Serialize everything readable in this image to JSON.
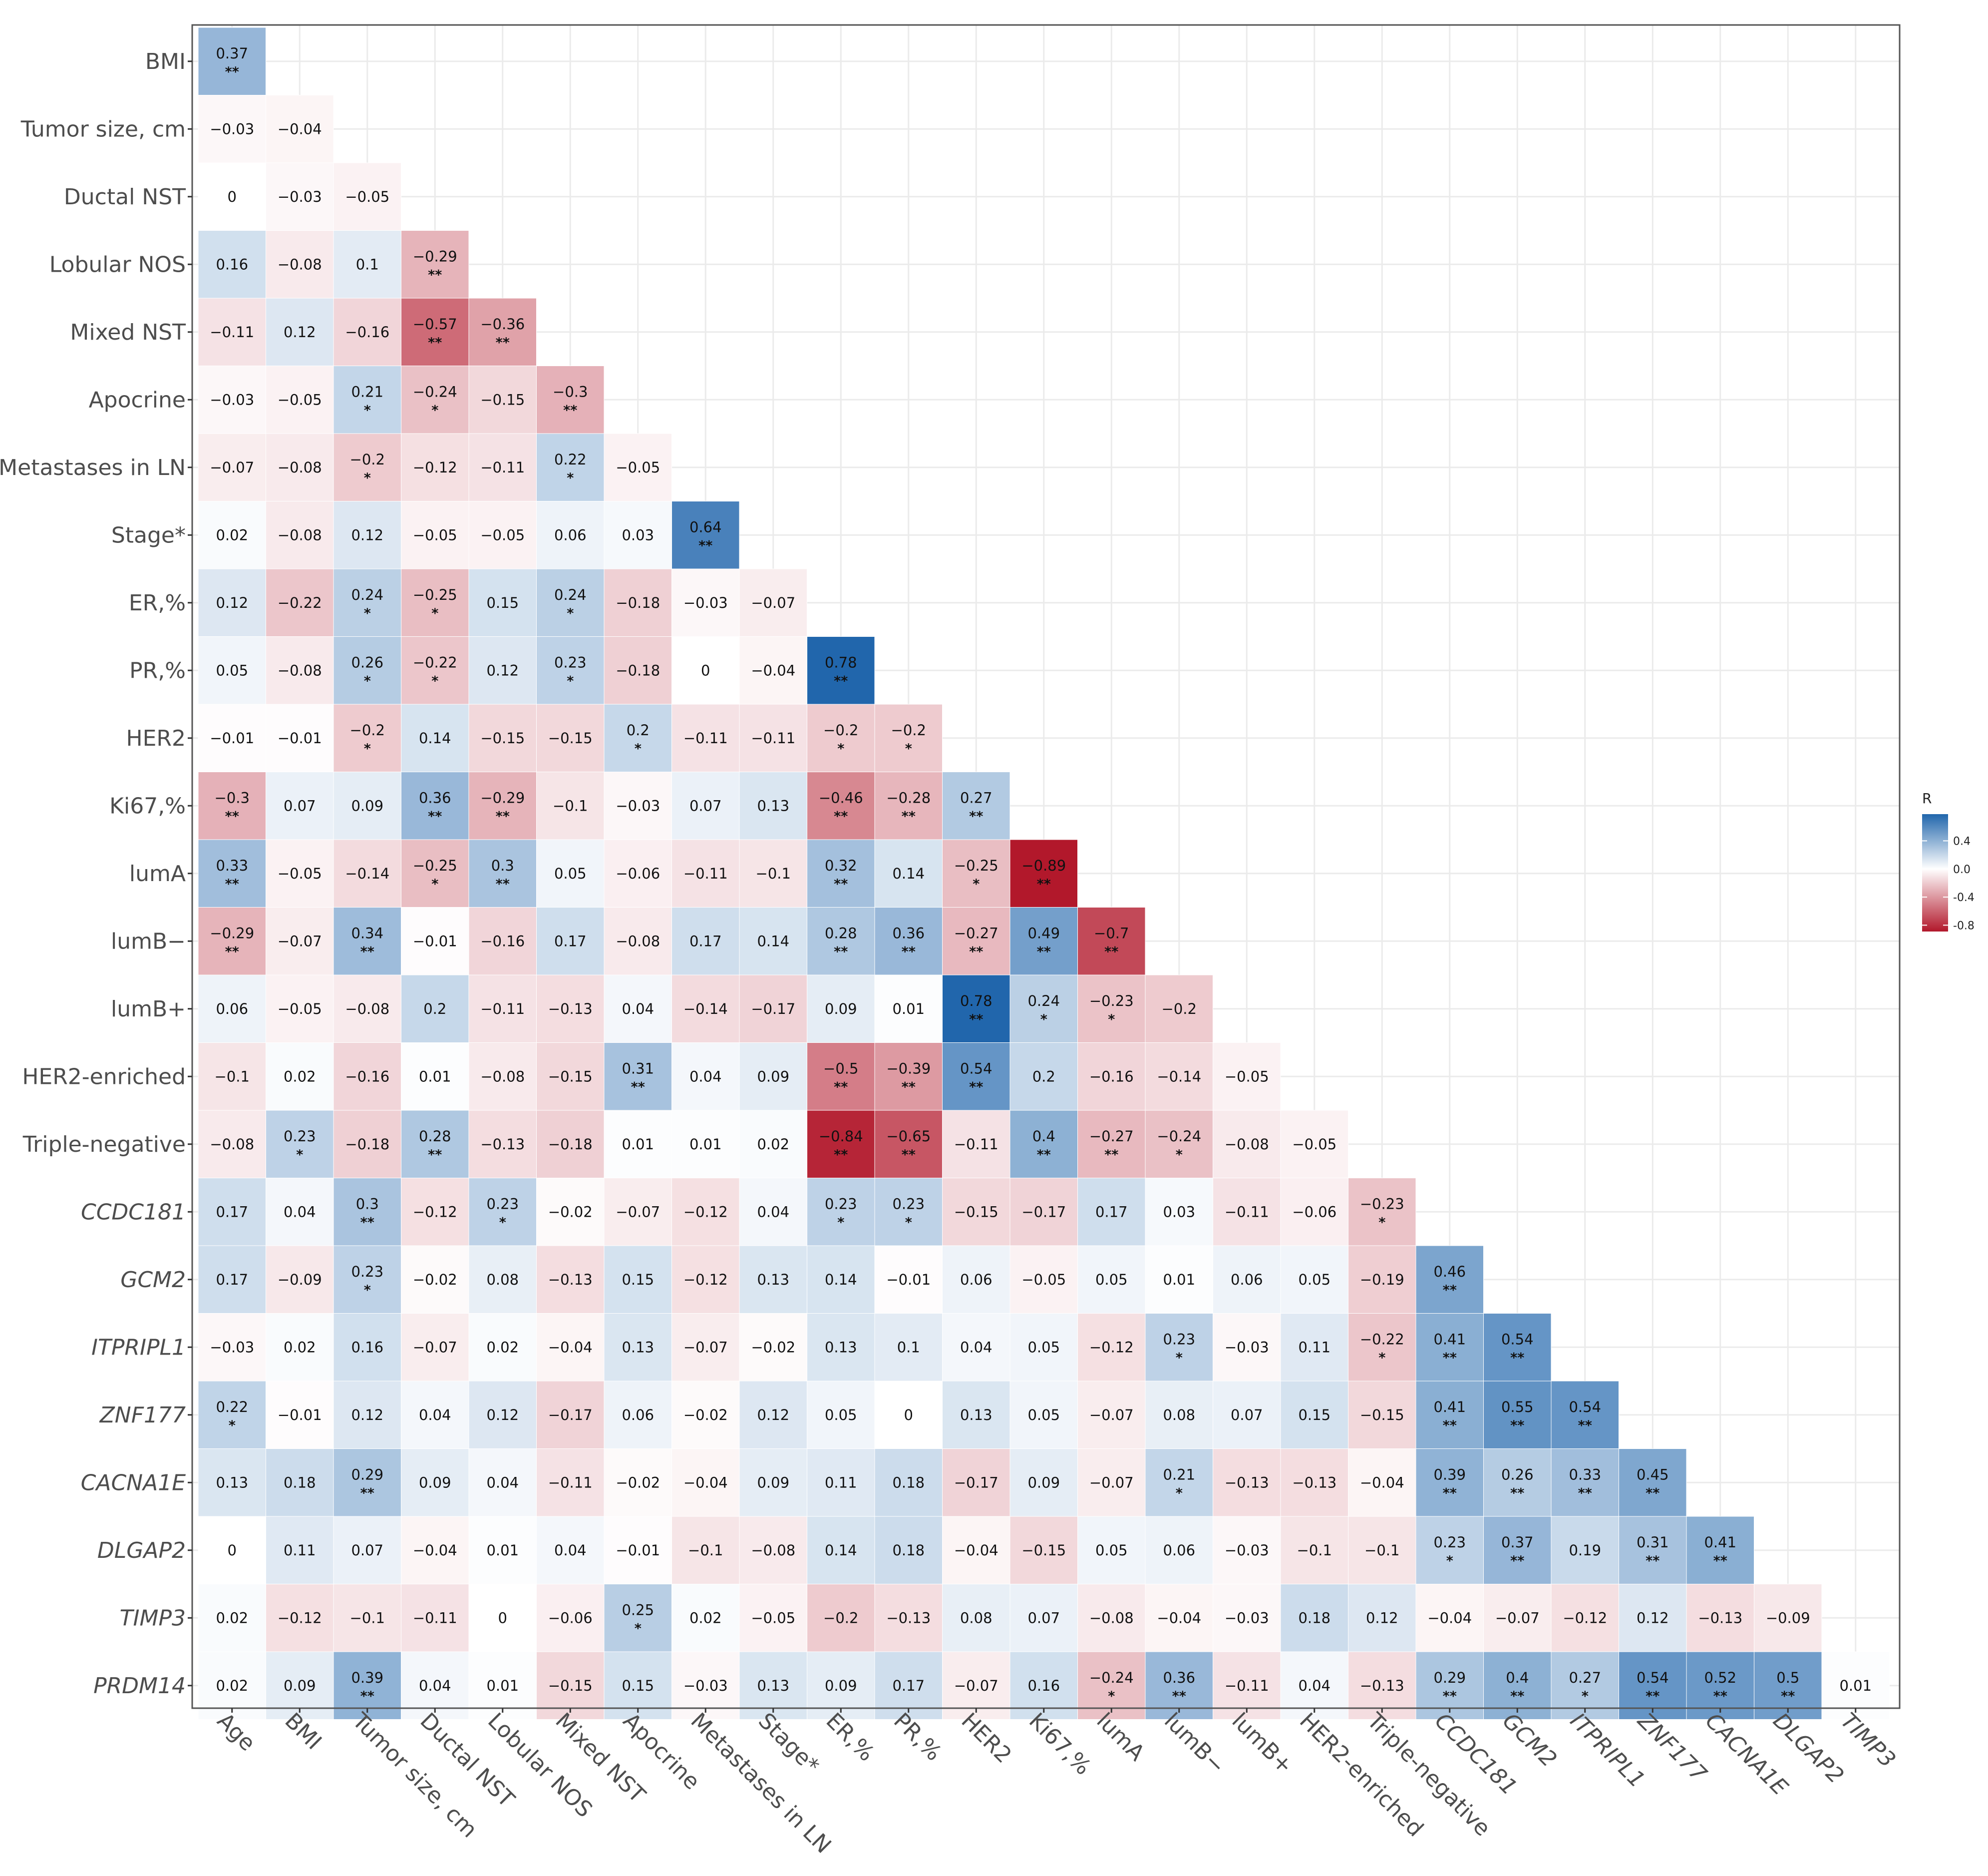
{
  "chart_data": {
    "type": "heatmap",
    "title": "",
    "xlabel": "",
    "ylabel": "",
    "italic_labels": [
      "CCDC181",
      "GCM2",
      "ITPRIPL1",
      "ZNF177",
      "CACNA1E",
      "DLGAP2",
      "TIMP3",
      "PRDM14"
    ],
    "columns": [
      "Age",
      "BMI",
      "Tumor size, cm",
      "Ductal NST",
      "Lobular NOS",
      "Mixed NST",
      "Apocrine",
      "Metastases in LN",
      "Stage*",
      "ER,%",
      "PR,%",
      "HER2",
      "Ki67,%",
      "lumA",
      "lumB−",
      "lumB+",
      "HER2-enriched",
      "Triple-negative",
      "CCDC181",
      "GCM2",
      "ITPRIPL1",
      "ZNF177",
      "CACNA1E",
      "DLGAP2",
      "TIMP3"
    ],
    "rows": [
      {
        "label": "BMI",
        "r": [
          "0.37"
        ],
        "sig": [
          "**"
        ]
      },
      {
        "label": "Tumor size, cm",
        "r": [
          "-0.03",
          "-0.04"
        ],
        "sig": [
          "",
          ""
        ]
      },
      {
        "label": "Ductal NST",
        "r": [
          "0",
          "-0.03",
          "-0.05"
        ],
        "sig": [
          "",
          "",
          ""
        ]
      },
      {
        "label": "Lobular NOS",
        "r": [
          "0.16",
          "-0.08",
          "0.1",
          "-0.29"
        ],
        "sig": [
          "",
          "",
          "",
          "**"
        ]
      },
      {
        "label": "Mixed NST",
        "r": [
          "-0.11",
          "0.12",
          "-0.16",
          "-0.57",
          "-0.36"
        ],
        "sig": [
          "",
          "",
          "",
          "**",
          "**"
        ]
      },
      {
        "label": "Apocrine",
        "r": [
          "-0.03",
          "-0.05",
          "0.21",
          "-0.24",
          "-0.15",
          "-0.3"
        ],
        "sig": [
          "",
          "",
          "*",
          "*",
          "",
          "**"
        ]
      },
      {
        "label": "Metastases in LN",
        "r": [
          "-0.07",
          "-0.08",
          "-0.2",
          "-0.12",
          "-0.11",
          "0.22",
          "-0.05"
        ],
        "sig": [
          "",
          "",
          "*",
          "",
          "",
          "*",
          ""
        ]
      },
      {
        "label": "Stage*",
        "r": [
          "0.02",
          "-0.08",
          "0.12",
          "-0.05",
          "-0.05",
          "0.06",
          "0.03",
          "0.64"
        ],
        "sig": [
          "",
          "",
          "",
          "",
          "",
          "",
          "",
          "**"
        ]
      },
      {
        "label": "ER,%",
        "r": [
          "0.12",
          "-0.22",
          "0.24",
          "-0.25",
          "0.15",
          "0.24",
          "-0.18",
          "-0.03",
          "-0.07"
        ],
        "sig": [
          "",
          "",
          "*",
          "*",
          "",
          "*",
          "",
          "",
          ""
        ]
      },
      {
        "label": "PR,%",
        "r": [
          "0.05",
          "-0.08",
          "0.26",
          "-0.22",
          "0.12",
          "0.23",
          "-0.18",
          "0",
          "-0.04",
          "0.78"
        ],
        "sig": [
          "",
          "",
          "*",
          "*",
          "",
          "*",
          "",
          "",
          "",
          "**"
        ]
      },
      {
        "label": "HER2",
        "r": [
          "-0.01",
          "-0.01",
          "-0.2",
          "0.14",
          "-0.15",
          "-0.15",
          "0.2",
          "-0.11",
          "-0.11",
          "-0.2",
          "-0.2"
        ],
        "sig": [
          "",
          "",
          "*",
          "",
          "",
          "",
          "*",
          "",
          "",
          "*",
          "*"
        ]
      },
      {
        "label": "Ki67,%",
        "r": [
          "-0.3",
          "0.07",
          "0.09",
          "0.36",
          "-0.29",
          "-0.1",
          "-0.03",
          "0.07",
          "0.13",
          "-0.46",
          "-0.28",
          "0.27"
        ],
        "sig": [
          "**",
          "",
          "",
          "**",
          "**",
          "",
          "",
          "",
          "",
          "**",
          "**",
          "**"
        ]
      },
      {
        "label": "lumA",
        "r": [
          "0.33",
          "-0.05",
          "-0.14",
          "-0.25",
          "0.3",
          "0.05",
          "-0.06",
          "-0.11",
          "-0.1",
          "0.32",
          "0.14",
          "-0.25",
          "-0.89"
        ],
        "sig": [
          "**",
          "",
          "",
          "*",
          "**",
          "",
          "",
          "",
          "",
          "**",
          "",
          "*",
          "**"
        ]
      },
      {
        "label": "lumB−",
        "r": [
          "-0.29",
          "-0.07",
          "0.34",
          "-0.01",
          "-0.16",
          "0.17",
          "-0.08",
          "0.17",
          "0.14",
          "0.28",
          "0.36",
          "-0.27",
          "0.49",
          "-0.7"
        ],
        "sig": [
          "**",
          "",
          "**",
          "",
          "",
          "",
          "",
          "",
          "",
          "**",
          "**",
          "**",
          "**",
          "**"
        ]
      },
      {
        "label": "lumB+",
        "r": [
          "0.06",
          "-0.05",
          "-0.08",
          "0.2",
          "-0.11",
          "-0.13",
          "0.04",
          "-0.14",
          "-0.17",
          "0.09",
          "0.01",
          "0.78",
          "0.24",
          "-0.23",
          "-0.2"
        ],
        "sig": [
          "",
          "",
          "",
          "",
          "",
          "",
          "",
          "",
          "",
          "",
          "",
          "**",
          "*",
          "*",
          ""
        ]
      },
      {
        "label": "HER2-enriched",
        "r": [
          "-0.1",
          "0.02",
          "-0.16",
          "0.01",
          "-0.08",
          "-0.15",
          "0.31",
          "0.04",
          "0.09",
          "-0.5",
          "-0.39",
          "0.54",
          "0.2",
          "-0.16",
          "-0.14",
          "-0.05"
        ],
        "sig": [
          "",
          "",
          "",
          "",
          "",
          "",
          "**",
          "",
          "",
          "**",
          "**",
          "**",
          "",
          "",
          "",
          ""
        ]
      },
      {
        "label": "Triple-negative",
        "r": [
          "-0.08",
          "0.23",
          "-0.18",
          "0.28",
          "-0.13",
          "-0.18",
          "0.01",
          "0.01",
          "0.02",
          "-0.84",
          "-0.65",
          "-0.11",
          "0.4",
          "-0.27",
          "-0.24",
          "-0.08",
          "-0.05"
        ],
        "sig": [
          "",
          "*",
          "",
          "**",
          "",
          "",
          "",
          "",
          "",
          "**",
          "**",
          "",
          "**",
          "**",
          "*",
          "",
          ""
        ]
      },
      {
        "label": "CCDC181",
        "r": [
          "0.17",
          "0.04",
          "0.3",
          "-0.12",
          "0.23",
          "-0.02",
          "-0.07",
          "-0.12",
          "0.04",
          "0.23",
          "0.23",
          "-0.15",
          "-0.17",
          "0.17",
          "0.03",
          "-0.11",
          "-0.06",
          "-0.23"
        ],
        "sig": [
          "",
          "",
          "**",
          "",
          "*",
          "",
          "",
          "",
          "",
          "*",
          "*",
          "",
          "",
          "",
          "",
          "",
          "",
          "*"
        ]
      },
      {
        "label": "GCM2",
        "r": [
          "0.17",
          "-0.09",
          "0.23",
          "-0.02",
          "0.08",
          "-0.13",
          "0.15",
          "-0.12",
          "0.13",
          "0.14",
          "-0.01",
          "0.06",
          "-0.05",
          "0.05",
          "0.01",
          "0.06",
          "0.05",
          "-0.19",
          "0.46"
        ],
        "sig": [
          "",
          "",
          "*",
          "",
          "",
          "",
          "",
          "",
          "",
          "",
          "",
          "",
          "",
          "",
          "",
          "",
          "",
          "",
          "**"
        ]
      },
      {
        "label": "ITPRIPL1",
        "r": [
          "-0.03",
          "0.02",
          "0.16",
          "-0.07",
          "0.02",
          "-0.04",
          "0.13",
          "-0.07",
          "-0.02",
          "0.13",
          "0.1",
          "0.04",
          "0.05",
          "-0.12",
          "0.23",
          "-0.03",
          "0.11",
          "-0.22",
          "0.41",
          "0.54"
        ],
        "sig": [
          "",
          "",
          "",
          "",
          "",
          "",
          "",
          "",
          "",
          "",
          "",
          "",
          "",
          "",
          "*",
          "",
          "",
          "*",
          "**",
          "**"
        ]
      },
      {
        "label": "ZNF177",
        "r": [
          "0.22",
          "-0.01",
          "0.12",
          "0.04",
          "0.12",
          "-0.17",
          "0.06",
          "-0.02",
          "0.12",
          "0.05",
          "0",
          "0.13",
          "0.05",
          "-0.07",
          "0.08",
          "0.07",
          "0.15",
          "-0.15",
          "0.41",
          "0.55",
          "0.54"
        ],
        "sig": [
          "*",
          "",
          "",
          "",
          "",
          "",
          "",
          "",
          "",
          "",
          "",
          "",
          "",
          "",
          "",
          "",
          "",
          "",
          "**",
          "**",
          "**"
        ]
      },
      {
        "label": "CACNA1E",
        "r": [
          "0.13",
          "0.18",
          "0.29",
          "0.09",
          "0.04",
          "-0.11",
          "-0.02",
          "-0.04",
          "0.09",
          "0.11",
          "0.18",
          "-0.17",
          "0.09",
          "-0.07",
          "0.21",
          "-0.13",
          "-0.13",
          "-0.04",
          "0.39",
          "0.26",
          "0.33",
          "0.45"
        ],
        "sig": [
          "",
          "",
          "**",
          "",
          "",
          "",
          "",
          "",
          "",
          "",
          "",
          "",
          "",
          "",
          "*",
          "",
          "",
          "",
          "**",
          "**",
          "**",
          "**"
        ]
      },
      {
        "label": "DLGAP2",
        "r": [
          "0",
          "0.11",
          "0.07",
          "-0.04",
          "0.01",
          "0.04",
          "-0.01",
          "-0.1",
          "-0.08",
          "0.14",
          "0.18",
          "-0.04",
          "-0.15",
          "0.05",
          "0.06",
          "-0.03",
          "-0.1",
          "-0.1",
          "0.23",
          "0.37",
          "0.19",
          "0.31",
          "0.41"
        ],
        "sig": [
          "",
          "",
          "",
          "",
          "",
          "",
          "",
          "",
          "",
          "",
          "",
          "",
          "",
          "",
          "",
          "",
          "",
          "",
          "*",
          "**",
          "",
          "**",
          "**"
        ]
      },
      {
        "label": "TIMP3",
        "r": [
          "0.02",
          "-0.12",
          "-0.1",
          "-0.11",
          "0",
          "-0.06",
          "0.25",
          "0.02",
          "-0.05",
          "-0.2",
          "-0.13",
          "0.08",
          "0.07",
          "-0.08",
          "-0.04",
          "-0.03",
          "0.18",
          "0.12",
          "-0.04",
          "-0.07",
          "-0.12",
          "0.12",
          "-0.13",
          "-0.09"
        ],
        "sig": [
          "",
          "",
          "",
          "",
          "",
          "",
          "*",
          "",
          "",
          "",
          "",
          "",
          "",
          "",
          "",
          "",
          "",
          "",
          "",
          "",
          "",
          "",
          "",
          ""
        ]
      },
      {
        "label": "PRDM14",
        "r": [
          "0.02",
          "0.09",
          "0.39",
          "0.04",
          "0.01",
          "-0.15",
          "0.15",
          "-0.03",
          "0.13",
          "0.09",
          "0.17",
          "-0.07",
          "0.16",
          "-0.24",
          "0.36",
          "-0.11",
          "0.04",
          "-0.13",
          "0.29",
          "0.4",
          "0.27",
          "0.54",
          "0.52",
          "0.5",
          "0.01"
        ],
        "sig": [
          "",
          "",
          "**",
          "",
          "",
          "",
          "",
          "",
          "",
          "",
          "",
          "",
          "",
          "*",
          "**",
          "",
          "",
          "",
          "**",
          "**",
          "*",
          "**",
          "**",
          "**",
          ""
        ]
      }
    ],
    "legend": {
      "title": "R",
      "ticks": [
        "0.4",
        "0.0",
        "-0.4",
        "-0.8"
      ],
      "tick_values": [
        0.4,
        0.0,
        -0.4,
        -0.8
      ],
      "range": [
        -0.89,
        0.78
      ]
    },
    "colors": {
      "positive": "#2166ac",
      "zero": "#ffffff",
      "negative": "#b2182b",
      "panel_border": "#555555",
      "grid": "#ebebeb"
    }
  }
}
